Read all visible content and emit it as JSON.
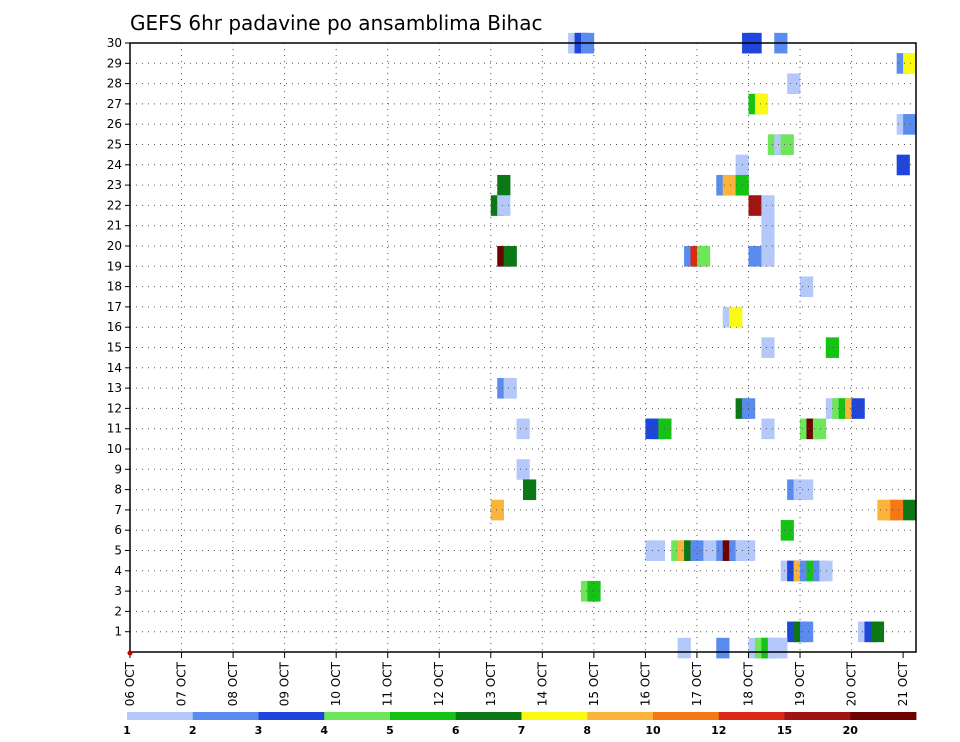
{
  "chart_data": {
    "type": "heatmap",
    "title": "GEFS 6hr padavine po ansamblima Bihac",
    "x_tick_labels": [
      "06 OCT",
      "07 OCT",
      "08 OCT",
      "09 OCT",
      "10 OCT",
      "11 OCT",
      "12 OCT",
      "13 OCT",
      "14 OCT",
      "15 OCT",
      "16 OCT",
      "17 OCT",
      "18 OCT",
      "19 OCT",
      "20 OCT",
      "21 OCT"
    ],
    "y_tick_labels": [
      "1",
      "2",
      "3",
      "4",
      "5",
      "6",
      "7",
      "8",
      "9",
      "10",
      "11",
      "12",
      "13",
      "14",
      "15",
      "16",
      "17",
      "18",
      "19",
      "20",
      "21",
      "22",
      "23",
      "24",
      "25",
      "26",
      "27",
      "28",
      "29",
      "30"
    ],
    "xlim": [
      0,
      61
    ],
    "ylim": [
      0,
      30
    ],
    "grid": true,
    "colorbar": {
      "labels": [
        "1",
        "2",
        "3",
        "4",
        "5",
        "6",
        "7",
        "8",
        "10",
        "12",
        "15",
        "20"
      ],
      "colors": [
        "#b4c8fa",
        "#5a8cf0",
        "#1e46dc",
        "#6ee65a",
        "#14c314",
        "#0a7814",
        "#fafa14",
        "#fab43c",
        "#f57814",
        "#dc2814",
        "#a01414",
        "#6e0000"
      ]
    },
    "cells": [
      {
        "x": 34.5,
        "y": 30,
        "c": 1
      },
      {
        "x": 35,
        "y": 30,
        "c": 3
      },
      {
        "x": 35.5,
        "y": 30,
        "c": 2
      },
      {
        "x": 48,
        "y": 30,
        "c": 3
      },
      {
        "x": 48.5,
        "y": 30,
        "c": 3
      },
      {
        "x": 50.5,
        "y": 30,
        "c": 2
      },
      {
        "x": 60,
        "y": 29,
        "c": 2
      },
      {
        "x": 60.5,
        "y": 29,
        "c": 7
      },
      {
        "x": 51.5,
        "y": 28,
        "c": 1
      },
      {
        "x": 48.5,
        "y": 27,
        "c": 5
      },
      {
        "x": 49,
        "y": 27,
        "c": 7
      },
      {
        "x": 60,
        "y": 26,
        "c": 1
      },
      {
        "x": 60.5,
        "y": 26,
        "c": 2
      },
      {
        "x": 50,
        "y": 25,
        "c": 4
      },
      {
        "x": 50.5,
        "y": 25,
        "c": 1
      },
      {
        "x": 51,
        "y": 25,
        "c": 4
      },
      {
        "x": 47.5,
        "y": 24,
        "c": 1
      },
      {
        "x": 60,
        "y": 24,
        "c": 3
      },
      {
        "x": 29,
        "y": 23,
        "c": 6
      },
      {
        "x": 46,
        "y": 23,
        "c": 2
      },
      {
        "x": 46.5,
        "y": 23,
        "c": 8
      },
      {
        "x": 47.5,
        "y": 23,
        "c": 5
      },
      {
        "x": 28.5,
        "y": 22,
        "c": 6
      },
      {
        "x": 29,
        "y": 22,
        "c": 1
      },
      {
        "x": 48.5,
        "y": 22,
        "c": 11
      },
      {
        "x": 49.5,
        "y": 22,
        "c": 1
      },
      {
        "x": 49.5,
        "y": 21,
        "c": 1
      },
      {
        "x": 49.5,
        "y": 20,
        "c": 1
      },
      {
        "x": 29,
        "y": 19.5,
        "c": 12
      },
      {
        "x": 29.5,
        "y": 19.5,
        "c": 6
      },
      {
        "x": 43.5,
        "y": 19.5,
        "c": 2
      },
      {
        "x": 44,
        "y": 19.5,
        "c": 10
      },
      {
        "x": 44.5,
        "y": 19.5,
        "c": 4
      },
      {
        "x": 48.5,
        "y": 19.5,
        "c": 2
      },
      {
        "x": 49.5,
        "y": 19.5,
        "c": 1
      },
      {
        "x": 52.5,
        "y": 18,
        "c": 1
      },
      {
        "x": 46.5,
        "y": 16.5,
        "c": 1
      },
      {
        "x": 47,
        "y": 16.5,
        "c": 7
      },
      {
        "x": 49.5,
        "y": 15,
        "c": 1
      },
      {
        "x": 54.5,
        "y": 15,
        "c": 5
      },
      {
        "x": 29,
        "y": 13,
        "c": 2
      },
      {
        "x": 29.5,
        "y": 13,
        "c": 1
      },
      {
        "x": 47.5,
        "y": 12,
        "c": 6
      },
      {
        "x": 48,
        "y": 12,
        "c": 2
      },
      {
        "x": 54.5,
        "y": 12,
        "c": 1
      },
      {
        "x": 55,
        "y": 12,
        "c": 4
      },
      {
        "x": 55.5,
        "y": 12,
        "c": 5
      },
      {
        "x": 56,
        "y": 12,
        "c": 8
      },
      {
        "x": 56.5,
        "y": 12,
        "c": 3
      },
      {
        "x": 30.5,
        "y": 11,
        "c": 1
      },
      {
        "x": 40.5,
        "y": 11,
        "c": 3
      },
      {
        "x": 41,
        "y": 11,
        "c": 3
      },
      {
        "x": 41.5,
        "y": 11,
        "c": 5
      },
      {
        "x": 49.5,
        "y": 11,
        "c": 1
      },
      {
        "x": 52.5,
        "y": 11,
        "c": 4
      },
      {
        "x": 53,
        "y": 11,
        "c": 12
      },
      {
        "x": 53.5,
        "y": 11,
        "c": 4
      },
      {
        "x": 30.5,
        "y": 9,
        "c": 1
      },
      {
        "x": 31,
        "y": 8,
        "c": 6
      },
      {
        "x": 51.5,
        "y": 8,
        "c": 2
      },
      {
        "x": 52,
        "y": 8,
        "c": 1
      },
      {
        "x": 52.5,
        "y": 8,
        "c": 1
      },
      {
        "x": 28.5,
        "y": 7,
        "c": 8
      },
      {
        "x": 58.5,
        "y": 7,
        "c": 8
      },
      {
        "x": 59,
        "y": 7,
        "c": 8
      },
      {
        "x": 59.5,
        "y": 7,
        "c": 9
      },
      {
        "x": 60.5,
        "y": 7,
        "c": 6
      },
      {
        "x": 51,
        "y": 6,
        "c": 5
      },
      {
        "x": 40.5,
        "y": 5,
        "c": 1
      },
      {
        "x": 41,
        "y": 5,
        "c": 1
      },
      {
        "x": 42.5,
        "y": 5,
        "c": 4
      },
      {
        "x": 43,
        "y": 5,
        "c": 8
      },
      {
        "x": 43.5,
        "y": 5,
        "c": 6
      },
      {
        "x": 44,
        "y": 5,
        "c": 2
      },
      {
        "x": 45,
        "y": 5,
        "c": 1
      },
      {
        "x": 46,
        "y": 5,
        "c": 2
      },
      {
        "x": 46.5,
        "y": 5,
        "c": 12
      },
      {
        "x": 47,
        "y": 5,
        "c": 2
      },
      {
        "x": 47.5,
        "y": 5,
        "c": 1
      },
      {
        "x": 48,
        "y": 5,
        "c": 1
      },
      {
        "x": 51,
        "y": 4,
        "c": 1
      },
      {
        "x": 51.5,
        "y": 4,
        "c": 3
      },
      {
        "x": 52,
        "y": 4,
        "c": 8
      },
      {
        "x": 52.5,
        "y": 4,
        "c": 2
      },
      {
        "x": 53,
        "y": 4,
        "c": 5
      },
      {
        "x": 53.5,
        "y": 4,
        "c": 2
      },
      {
        "x": 54,
        "y": 4,
        "c": 1
      },
      {
        "x": 35.5,
        "y": 3,
        "c": 4
      },
      {
        "x": 36,
        "y": 3,
        "c": 5
      },
      {
        "x": 51.5,
        "y": 1,
        "c": 3
      },
      {
        "x": 52,
        "y": 1,
        "c": 6
      },
      {
        "x": 52.5,
        "y": 1,
        "c": 2
      },
      {
        "x": 57,
        "y": 1,
        "c": 1
      },
      {
        "x": 57.5,
        "y": 1,
        "c": 3
      },
      {
        "x": 58,
        "y": 1,
        "c": 6
      },
      {
        "x": 43,
        "y": 0.2,
        "c": 1
      },
      {
        "x": 46,
        "y": 0.2,
        "c": 2
      },
      {
        "x": 48.5,
        "y": 0.2,
        "c": 1
      },
      {
        "x": 49,
        "y": 0.2,
        "c": 4
      },
      {
        "x": 49.5,
        "y": 0.2,
        "c": 5
      },
      {
        "x": 50,
        "y": 0.2,
        "c": 1
      },
      {
        "x": 50.5,
        "y": 0.2,
        "c": 1
      }
    ]
  }
}
